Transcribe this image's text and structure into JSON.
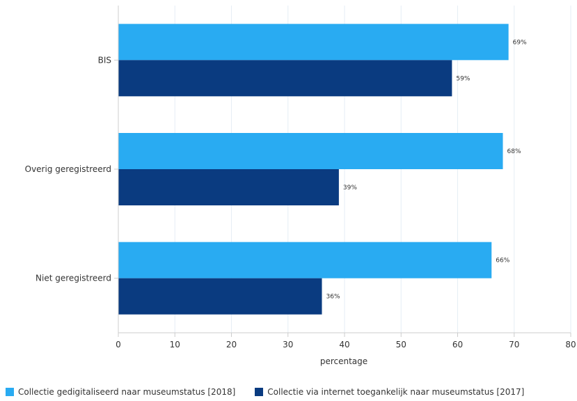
{
  "chart_data": {
    "type": "bar",
    "orientation": "horizontal",
    "categories": [
      "BIS",
      "Overig geregistreerd",
      "Niet geregistreerd"
    ],
    "series": [
      {
        "name": "Collectie gedigitaliseerd naar museumstatus [2018]",
        "color": "#29abf2",
        "values": [
          69,
          68,
          66
        ],
        "labels": [
          "69%",
          "68%",
          "66%"
        ]
      },
      {
        "name": "Collectie via internet toegankelijk naar museumstatus [2017]",
        "color": "#0a3b80",
        "values": [
          59,
          39,
          36
        ],
        "labels": [
          "59%",
          "39%",
          "36%"
        ]
      }
    ],
    "xlabel": "percentage",
    "xlim": [
      0,
      80
    ],
    "xticks": [
      "0",
      "10",
      "20",
      "30",
      "40",
      "50",
      "60",
      "70",
      "80"
    ],
    "grid": true,
    "legend": "bottom-left"
  }
}
